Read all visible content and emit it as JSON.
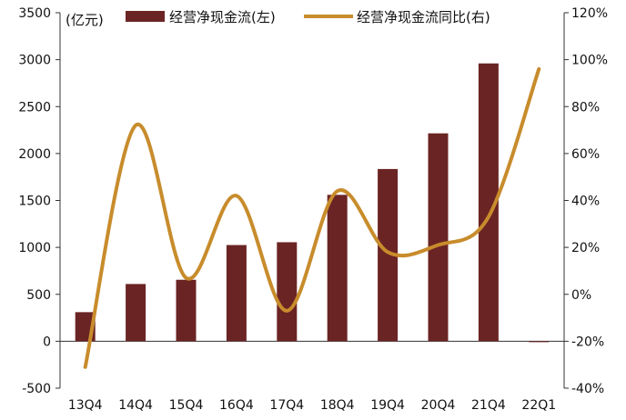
{
  "chart_data": {
    "type": "bar",
    "categories": [
      "13Q4",
      "14Q4",
      "15Q4",
      "16Q4",
      "17Q4",
      "18Q4",
      "19Q4",
      "20Q4",
      "21Q4",
      "22Q1"
    ],
    "unit_label": "(亿元)",
    "series": [
      {
        "name": "经营净现金流(左)",
        "type": "bar",
        "axis": "left",
        "values": [
          310,
          610,
          655,
          1025,
          1055,
          1560,
          1835,
          2215,
          2960,
          -5
        ]
      },
      {
        "name": "经营净现金流同比(右)",
        "type": "line",
        "axis": "right",
        "smooth": true,
        "values": [
          -31,
          72,
          7,
          42,
          -7,
          44,
          18,
          21,
          33,
          96
        ]
      }
    ],
    "y_left": {
      "min": -500,
      "max": 3500,
      "ticks": [
        "-500",
        "0",
        "500",
        "1000",
        "1500",
        "2000",
        "2500",
        "3000",
        "3500"
      ]
    },
    "y_right": {
      "min": -40,
      "max": 120,
      "ticks": [
        "-40%",
        "-20%",
        "0%",
        "20%",
        "40%",
        "60%",
        "80%",
        "100%",
        "120%"
      ]
    },
    "legend": "top",
    "grid": false,
    "colors": {
      "bar": "#6b2424",
      "line": "#c88c2c"
    }
  }
}
